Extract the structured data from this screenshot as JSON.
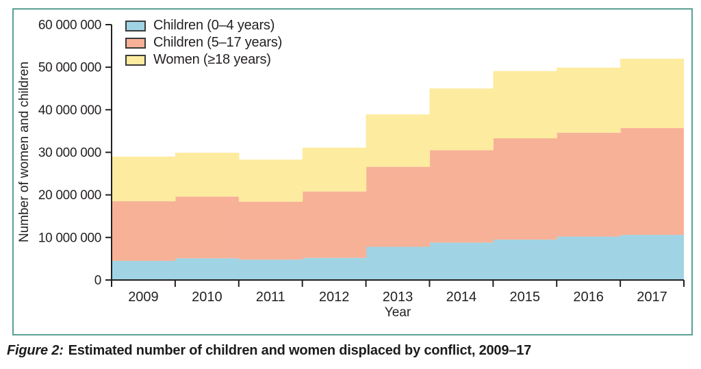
{
  "figure": {
    "caption_label": "Figure 2:",
    "caption_text": "Estimated number of children and women displaced by conflict, 2009–17"
  },
  "colors": {
    "frame_border": "#5aa094",
    "axis": "#231f20",
    "text": "#231f20",
    "legend_swatch_border": "#3a3a3a"
  },
  "chart_data": {
    "type": "area",
    "variant": "stacked-step",
    "title": "",
    "xlabel": "Year",
    "ylabel": "Number of women and children",
    "ylim": [
      0,
      60000000
    ],
    "ytick_step": 10000000,
    "ytick_labels": [
      "0",
      "10 000 000",
      "20 000 000",
      "30 000 000",
      "40 000 000",
      "50 000 000",
      "60 000 000"
    ],
    "grid": false,
    "legend_position": "top-left-inside",
    "categories": [
      "2009",
      "2010",
      "2011",
      "2012",
      "2013",
      "2014",
      "2015",
      "2016",
      "2017"
    ],
    "series": [
      {
        "name": "Children (0–4 years)",
        "color": "#a0d4e4",
        "values": [
          4500000,
          5100000,
          4800000,
          5200000,
          7800000,
          8800000,
          9500000,
          10200000,
          10600000
        ]
      },
      {
        "name": "Children (5–17 years)",
        "color": "#f7b197",
        "values": [
          14000000,
          14500000,
          13600000,
          15600000,
          18800000,
          21700000,
          23800000,
          24400000,
          25100000
        ]
      },
      {
        "name": "Women (≥18 years)",
        "color": "#fdeb9f",
        "values": [
          10500000,
          10300000,
          9900000,
          10300000,
          12300000,
          14500000,
          15800000,
          15300000,
          16300000
        ]
      }
    ],
    "stacked_totals": [
      29000000,
      29900000,
      28300000,
      31100000,
      38900000,
      45000000,
      49100000,
      49900000,
      52000000
    ]
  }
}
